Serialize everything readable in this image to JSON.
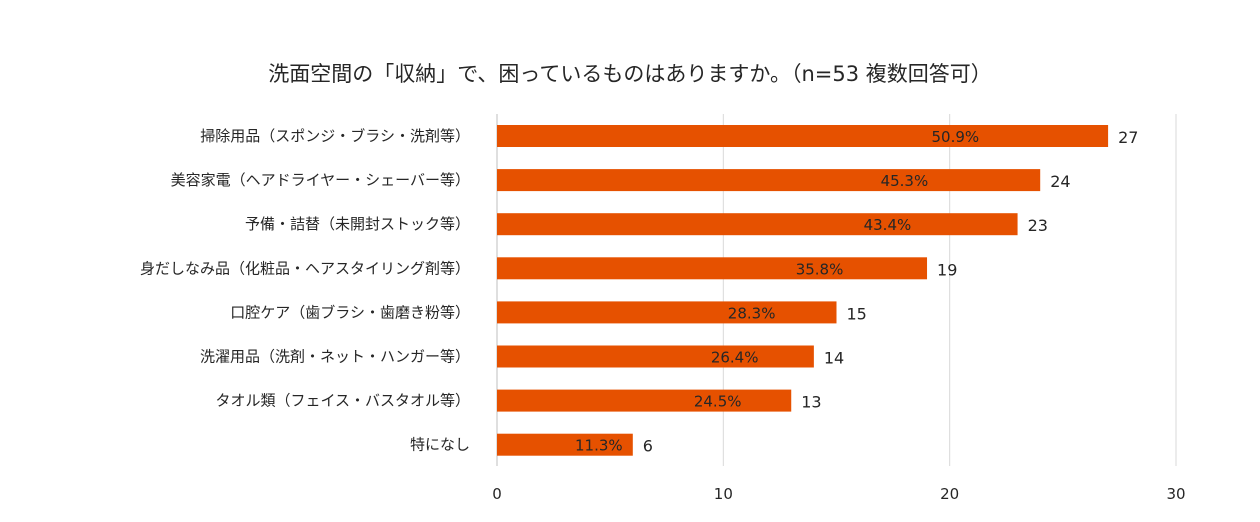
{
  "chart_data": {
    "type": "bar",
    "orientation": "horizontal",
    "title": "洗面空間の「収納」で、困っているものはありますか。（n=53 複数回答可）",
    "categories": [
      "掃除用品（スポンジ・ブラシ・洗剤等）",
      "美容家電（ヘアドライヤー・シェーバー等）",
      "予備・詰替（未開封ストック等）",
      "身だしなみ品（化粧品・ヘアスタイリング剤等）",
      "口腔ケア（歯ブラシ・歯磨き粉等）",
      "洗濯用品（洗剤・ネット・ハンガー等）",
      "タオル類（フェイス・バスタオル等）",
      "特になし"
    ],
    "values": [
      27,
      24,
      23,
      19,
      15,
      14,
      13,
      6
    ],
    "percent_labels": [
      "50.9%",
      "45.3%",
      "43.4%",
      "35.8%",
      "28.3%",
      "26.4%",
      "24.5%",
      "11.3%"
    ],
    "xlim": [
      0,
      30
    ],
    "xticks": [
      0,
      10,
      20,
      30
    ],
    "grid": true,
    "bar_color": "#E65100",
    "xlabel": "",
    "ylabel": ""
  }
}
